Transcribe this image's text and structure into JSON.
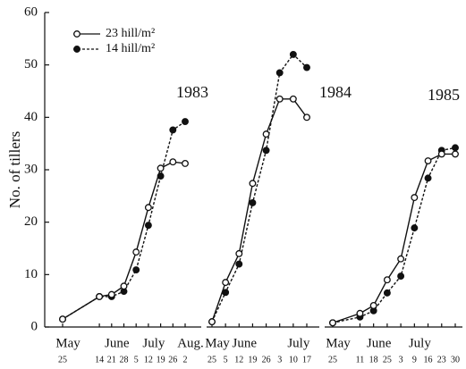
{
  "chart_data": {
    "type": "line",
    "y_label": "No. of tillers",
    "ylim": [
      0,
      60
    ],
    "yticks": [
      0,
      10,
      20,
      30,
      40,
      50,
      60
    ],
    "legend": [
      {
        "name": "23 hill/m²",
        "color": "#111111",
        "marker": "open",
        "dash": false
      },
      {
        "name": "14 hill/m²",
        "color": "#111111",
        "marker": "filled",
        "dash": true
      }
    ],
    "panels": [
      {
        "title": "1983",
        "categories": [
          "25",
          null,
          null,
          "14",
          "21",
          "28",
          "5",
          "12",
          "19",
          "26",
          "2"
        ],
        "month_labels": [
          "May",
          null,
          null,
          null,
          "June",
          null,
          null,
          "July",
          null,
          null,
          "Aug."
        ],
        "series": [
          {
            "values": [
              1.5,
              null,
              null,
              5.8,
              6.2,
              7.8,
              14.3,
              22.8,
              30.3,
              31.5,
              31.2
            ]
          },
          {
            "values": [
              1.5,
              null,
              null,
              5.8,
              5.8,
              6.8,
              10.9,
              19.4,
              28.8,
              37.6,
              39.2
            ]
          }
        ]
      },
      {
        "title": "1984",
        "categories": [
          "25",
          "5",
          "12",
          "19",
          "26",
          "3",
          "10",
          "17"
        ],
        "month_labels": [
          "May",
          null,
          "June",
          null,
          null,
          null,
          "July",
          null
        ],
        "series": [
          {
            "values": [
              1,
              8.5,
              14,
              27.4,
              36.8,
              43.5,
              43.5,
              40
            ]
          },
          {
            "values": [
              1,
              6.6,
              12,
              23.7,
              33.7,
              48.5,
              52,
              49.5
            ]
          }
        ]
      },
      {
        "title": "1985",
        "categories": [
          "25",
          null,
          "11",
          "18",
          "25",
          "3",
          "9",
          "16",
          "23",
          "30"
        ],
        "month_labels": [
          "May",
          null,
          null,
          "June",
          null,
          null,
          "July",
          null,
          null,
          null
        ],
        "series": [
          {
            "values": [
              0.8,
              null,
              2.6,
              4.1,
              9,
              13,
              24.7,
              31.7,
              33,
              33
            ]
          },
          {
            "values": [
              0.8,
              null,
              1.9,
              3.1,
              6.5,
              9.7,
              18.9,
              28.4,
              33.7,
              34.2
            ]
          }
        ]
      }
    ]
  }
}
